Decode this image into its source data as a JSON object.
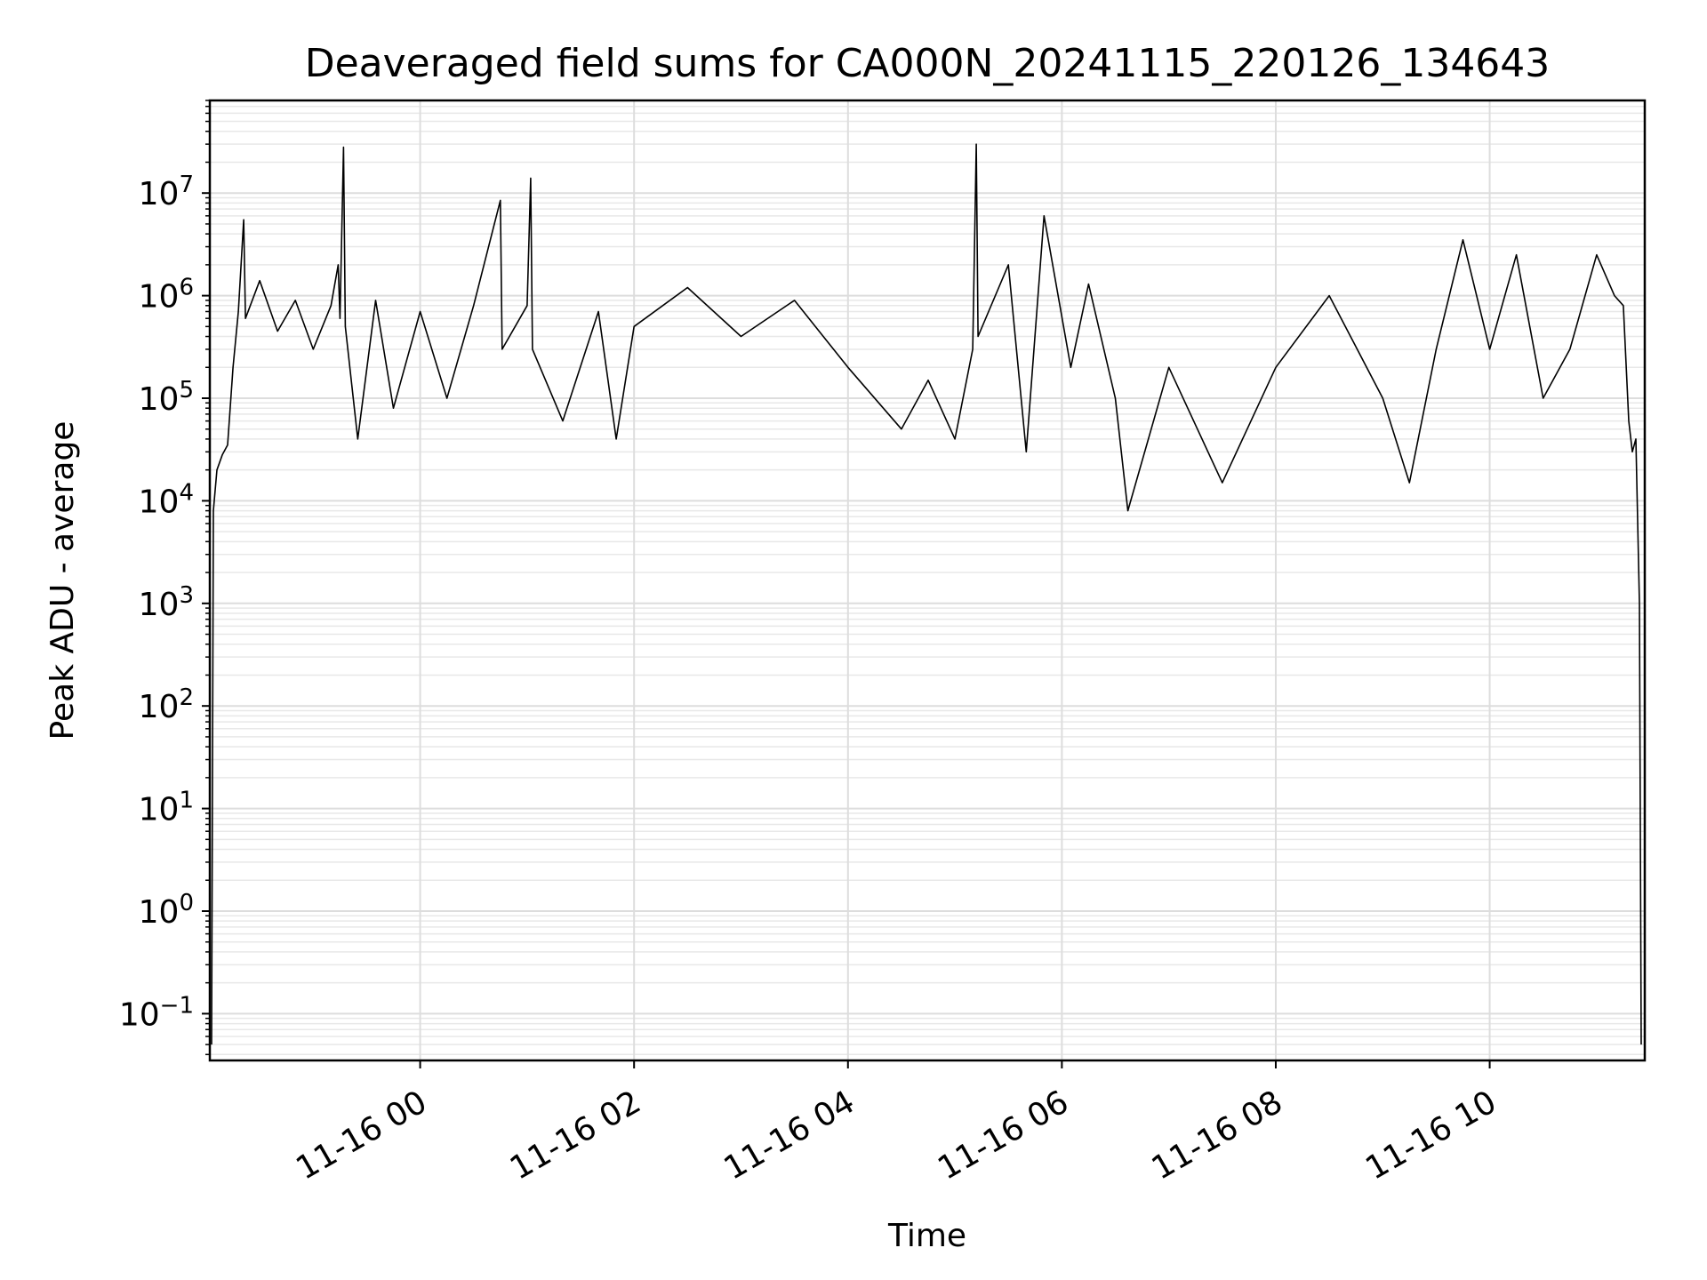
{
  "chart_data": {
    "type": "line",
    "title": "Deaveraged field sums for CA000N_20241115_220126_134643",
    "xlabel": "Time",
    "ylabel": "Peak ADU - average",
    "y_scale": "log",
    "ylim": [
      0.035,
      80000000
    ],
    "xlim": [
      "2024-11-15 22:02",
      "2024-11-16 11:27"
    ],
    "x_ticks": [
      {
        "time": "2024-11-16 00:00",
        "label": "11-16 00"
      },
      {
        "time": "2024-11-16 02:00",
        "label": "11-16 02"
      },
      {
        "time": "2024-11-16 04:00",
        "label": "11-16 04"
      },
      {
        "time": "2024-11-16 06:00",
        "label": "11-16 06"
      },
      {
        "time": "2024-11-16 08:00",
        "label": "11-16 08"
      },
      {
        "time": "2024-11-16 10:00",
        "label": "11-16 10"
      }
    ],
    "y_ticks": [
      {
        "value": 0.1,
        "base": "10",
        "exp": "−1"
      },
      {
        "value": 1,
        "base": "10",
        "exp": "0"
      },
      {
        "value": 10,
        "base": "10",
        "exp": "1"
      },
      {
        "value": 100,
        "base": "10",
        "exp": "2"
      },
      {
        "value": 1000,
        "base": "10",
        "exp": "3"
      },
      {
        "value": 10000,
        "base": "10",
        "exp": "4"
      },
      {
        "value": 100000,
        "base": "10",
        "exp": "5"
      },
      {
        "value": 1000000,
        "base": "10",
        "exp": "6"
      },
      {
        "value": 10000000,
        "base": "10",
        "exp": "7"
      }
    ],
    "grid": "both",
    "line_color": "#000000",
    "series": [
      {
        "points": [
          [
            "2024-11-15 22:03",
            0.05
          ],
          [
            "2024-11-15 22:04",
            8000
          ],
          [
            "2024-11-15 22:06",
            20000
          ],
          [
            "2024-11-15 22:09",
            28000
          ],
          [
            "2024-11-15 22:12",
            35000
          ],
          [
            "2024-11-15 22:15",
            200000
          ],
          [
            "2024-11-15 22:18",
            700000
          ],
          [
            "2024-11-15 22:21",
            5500000
          ],
          [
            "2024-11-15 22:22",
            600000
          ],
          [
            "2024-11-15 22:30",
            1400000
          ],
          [
            "2024-11-15 22:40",
            450000
          ],
          [
            "2024-11-15 22:50",
            900000
          ],
          [
            "2024-11-15 23:00",
            300000
          ],
          [
            "2024-11-15 23:10",
            800000
          ],
          [
            "2024-11-15 23:14",
            2000000
          ],
          [
            "2024-11-15 23:15",
            600000
          ],
          [
            "2024-11-15 23:17",
            28000000
          ],
          [
            "2024-11-15 23:18",
            500000
          ],
          [
            "2024-11-15 23:25",
            40000
          ],
          [
            "2024-11-15 23:35",
            900000
          ],
          [
            "2024-11-15 23:45",
            80000
          ],
          [
            "2024-11-16 00:00",
            700000
          ],
          [
            "2024-11-16 00:15",
            100000
          ],
          [
            "2024-11-16 00:30",
            800000
          ],
          [
            "2024-11-16 00:45",
            8500000
          ],
          [
            "2024-11-16 00:46",
            300000
          ],
          [
            "2024-11-16 01:00",
            800000
          ],
          [
            "2024-11-16 01:02",
            14000000
          ],
          [
            "2024-11-16 01:03",
            300000
          ],
          [
            "2024-11-16 01:20",
            60000
          ],
          [
            "2024-11-16 01:40",
            700000
          ],
          [
            "2024-11-16 01:50",
            40000
          ],
          [
            "2024-11-16 02:00",
            500000
          ],
          [
            "2024-11-16 02:30",
            1200000
          ],
          [
            "2024-11-16 03:00",
            400000
          ],
          [
            "2024-11-16 03:30",
            900000
          ],
          [
            "2024-11-16 04:00",
            200000
          ],
          [
            "2024-11-16 04:30",
            50000
          ],
          [
            "2024-11-16 04:45",
            150000
          ],
          [
            "2024-11-16 05:00",
            40000
          ],
          [
            "2024-11-16 05:10",
            300000
          ],
          [
            "2024-11-16 05:12",
            30000000
          ],
          [
            "2024-11-16 05:13",
            400000
          ],
          [
            "2024-11-16 05:30",
            2000000
          ],
          [
            "2024-11-16 05:40",
            30000
          ],
          [
            "2024-11-16 05:50",
            6000000
          ],
          [
            "2024-11-16 06:05",
            200000
          ],
          [
            "2024-11-16 06:15",
            1300000
          ],
          [
            "2024-11-16 06:30",
            100000
          ],
          [
            "2024-11-16 06:37",
            8000
          ],
          [
            "2024-11-16 07:00",
            200000
          ],
          [
            "2024-11-16 07:30",
            15000
          ],
          [
            "2024-11-16 08:00",
            200000
          ],
          [
            "2024-11-16 08:30",
            1000000
          ],
          [
            "2024-11-16 09:00",
            100000
          ],
          [
            "2024-11-16 09:15",
            15000
          ],
          [
            "2024-11-16 09:30",
            300000
          ],
          [
            "2024-11-16 09:45",
            3500000
          ],
          [
            "2024-11-16 10:00",
            300000
          ],
          [
            "2024-11-16 10:15",
            2500000
          ],
          [
            "2024-11-16 10:30",
            100000
          ],
          [
            "2024-11-16 10:45",
            300000
          ],
          [
            "2024-11-16 11:00",
            2500000
          ],
          [
            "2024-11-16 11:10",
            1000000
          ],
          [
            "2024-11-16 11:15",
            800000
          ],
          [
            "2024-11-16 11:18",
            60000
          ],
          [
            "2024-11-16 11:20",
            30000
          ],
          [
            "2024-11-16 11:22",
            40000
          ],
          [
            "2024-11-16 11:24",
            1000
          ],
          [
            "2024-11-16 11:25",
            0.05
          ]
        ]
      }
    ]
  }
}
